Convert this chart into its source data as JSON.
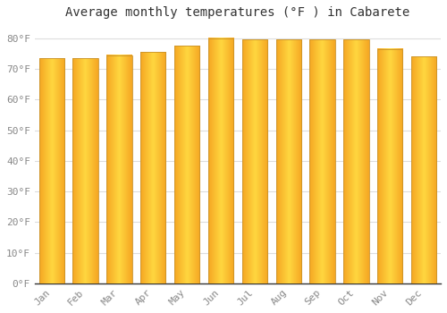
{
  "title": "Average monthly temperatures (°F ) in Cabarete",
  "months": [
    "Jan",
    "Feb",
    "Mar",
    "Apr",
    "May",
    "Jun",
    "Jul",
    "Aug",
    "Sep",
    "Oct",
    "Nov",
    "Dec"
  ],
  "values": [
    73.5,
    73.5,
    74.5,
    75.5,
    77.5,
    80.0,
    79.5,
    79.5,
    79.5,
    79.5,
    76.5,
    74.0
  ],
  "bar_color_center": "#FFD740",
  "bar_color_edge": "#F5A623",
  "bar_edge_color": "#C8922A",
  "background_color": "#FFFFFF",
  "plot_bg_color": "#FFFFFF",
  "grid_color": "#DDDDDD",
  "ylim": [
    0,
    84
  ],
  "yticks": [
    0,
    10,
    20,
    30,
    40,
    50,
    60,
    70,
    80
  ],
  "ytick_labels": [
    "0°F",
    "10°F",
    "20°F",
    "30°F",
    "40°F",
    "50°F",
    "60°F",
    "70°F",
    "80°F"
  ],
  "title_fontsize": 10,
  "tick_fontsize": 8,
  "title_font_family": "monospace",
  "bar_width": 0.75
}
